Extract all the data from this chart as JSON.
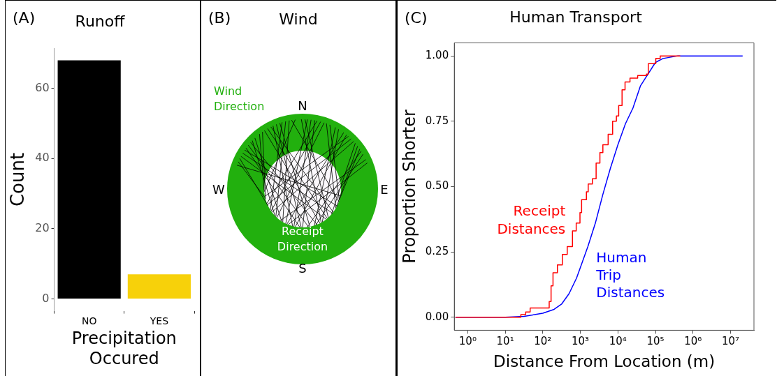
{
  "chart_data": [
    {
      "type": "bar",
      "title": "Runoff",
      "xlabel": "Precipitation Occured",
      "ylabel": "Count",
      "categories": [
        "NO",
        "YES"
      ],
      "values": [
        68,
        7
      ],
      "colors": [
        "#000000",
        "#f7d10a"
      ],
      "ylim": [
        -3.4,
        71.4
      ],
      "yticks": [
        0,
        20,
        40,
        60
      ],
      "grid": false,
      "annotations": [
        "(A)"
      ]
    },
    {
      "type": "other",
      "title": "Wind",
      "annotations": [
        "(B)",
        "Wind Direction",
        "N",
        "W",
        "E",
        "S",
        "Receipt Direction"
      ]
    },
    {
      "type": "line",
      "title": "Human Transport",
      "xlabel": "Distance From Location (m)",
      "ylabel": "Proportion Shorter",
      "log": "x",
      "grid": false,
      "xlim": [
        0.44,
        42000000
      ],
      "xticks": [
        {
          "value": 1,
          "label": "10⁰"
        },
        {
          "value": 10,
          "label": "10¹"
        },
        {
          "value": 100,
          "label": "10²"
        },
        {
          "value": 1000,
          "label": "10³"
        },
        {
          "value": 10000,
          "label": "10⁴"
        },
        {
          "value": 100000,
          "label": "10⁵"
        },
        {
          "value": 1000000,
          "label": "10⁶"
        },
        {
          "value": 10000000,
          "label": "10⁷"
        }
      ],
      "ylim": [
        -0.05,
        1.05
      ],
      "yticks": [
        {
          "value": 0,
          "label": "0.00"
        },
        {
          "value": 0.25,
          "label": "0.25"
        },
        {
          "value": 0.5,
          "label": "0.50"
        },
        {
          "value": 0.75,
          "label": "0.75"
        },
        {
          "value": 1,
          "label": "1.00"
        }
      ],
      "annotations": [
        "(C)"
      ],
      "series": [
        {
          "name": "Receipt Distances",
          "type": "step",
          "color": "#ff0000",
          "x": [
            0.47,
            26,
            35,
            46,
            148,
            166,
            187,
            245,
            331,
            447,
            617,
            776,
            977,
            1080,
            1450,
            1620,
            2090,
            2630,
            3320,
            3980,
            5500,
            7240,
            9120,
            10500,
            12900,
            15500,
            21000,
            33600,
            57500,
            64500,
            102000,
            134000,
            457000
          ],
          "values": [
            0,
            0.01,
            0.02,
            0.035,
            0.06,
            0.12,
            0.17,
            0.2,
            0.24,
            0.27,
            0.33,
            0.36,
            0.4,
            0.45,
            0.48,
            0.51,
            0.53,
            0.59,
            0.63,
            0.66,
            0.7,
            0.75,
            0.77,
            0.81,
            0.87,
            0.9,
            0.915,
            0.925,
            0.93,
            0.97,
            0.99,
            1,
            1
          ]
        },
        {
          "name": "Human Trip Distances",
          "type": "line",
          "color": "#0000ff",
          "x": [
            0.47,
            10,
            32,
            100,
            200,
            316,
            500,
            794,
            1000,
            1585,
            2512,
            3981,
            6310,
            10000,
            15850,
            25120,
            39810,
            63100,
            100000,
            158500,
            398000,
            21000000
          ],
          "values": [
            0,
            0,
            0.003,
            0.015,
            0.03,
            0.05,
            0.09,
            0.15,
            0.19,
            0.27,
            0.36,
            0.47,
            0.57,
            0.66,
            0.74,
            0.8,
            0.885,
            0.93,
            0.975,
            0.99,
            1,
            1
          ]
        }
      ]
    }
  ]
}
